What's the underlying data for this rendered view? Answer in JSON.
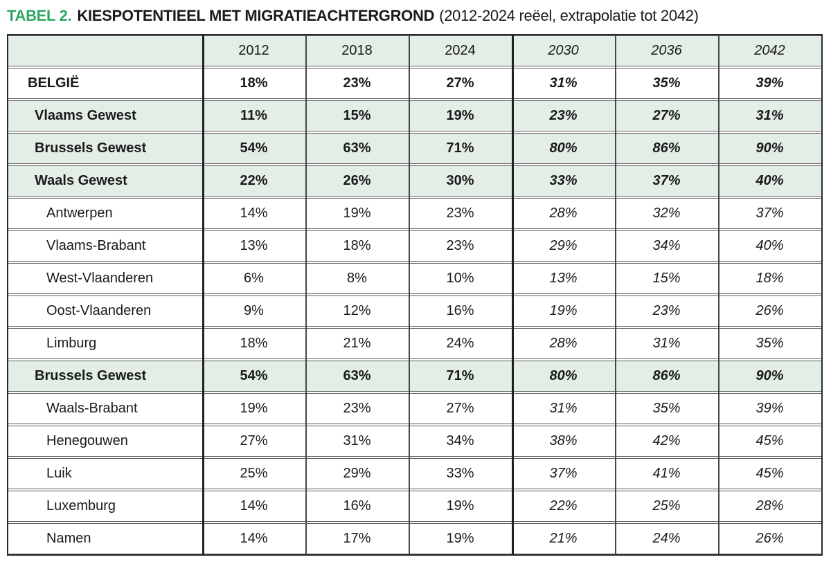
{
  "title": {
    "tag": "TABEL 2.",
    "main": "KIESPOTENTIEEL MET MIGRATIEACHTERGROND",
    "subtitle": "(2012-2024 reëel, extrapolatie tot 2042)"
  },
  "colors": {
    "accent_green": "#2fa665",
    "row_highlight_green": "#e3efe6",
    "border_dark": "#2a2a2a",
    "border_gray": "#5c5c5c",
    "text": "#1a1a1a"
  },
  "chart_data": {
    "type": "table",
    "title": "TABEL 2. KIESPOTENTIEEL MET MIGRATIEACHTERGROND (2012-2024 reëel, extrapolatie tot 2042)",
    "columns": [
      "",
      "2012",
      "2018",
      "2024",
      "2030",
      "2036",
      "2042"
    ],
    "real_years": [
      "2012",
      "2018",
      "2024"
    ],
    "extrapolated_years": [
      "2030",
      "2036",
      "2042"
    ],
    "rows": [
      {
        "label": "BELGIË",
        "style": "country",
        "values": [
          "18%",
          "23%",
          "27%",
          "31%",
          "35%",
          "39%"
        ]
      },
      {
        "label": "Vlaams Gewest",
        "style": "region",
        "values": [
          "11%",
          "15%",
          "19%",
          "23%",
          "27%",
          "31%"
        ]
      },
      {
        "label": "Brussels Gewest",
        "style": "region",
        "values": [
          "54%",
          "63%",
          "71%",
          "80%",
          "86%",
          "90%"
        ]
      },
      {
        "label": "Waals Gewest",
        "style": "region",
        "values": [
          "22%",
          "26%",
          "30%",
          "33%",
          "37%",
          "40%"
        ]
      },
      {
        "label": "Antwerpen",
        "style": "province",
        "values": [
          "14%",
          "19%",
          "23%",
          "28%",
          "32%",
          "37%"
        ]
      },
      {
        "label": "Vlaams-Brabant",
        "style": "province",
        "values": [
          "13%",
          "18%",
          "23%",
          "29%",
          "34%",
          "40%"
        ]
      },
      {
        "label": "West-Vlaanderen",
        "style": "province",
        "values": [
          "6%",
          "8%",
          "10%",
          "13%",
          "15%",
          "18%"
        ]
      },
      {
        "label": "Oost-Vlaanderen",
        "style": "province",
        "values": [
          "9%",
          "12%",
          "16%",
          "19%",
          "23%",
          "26%"
        ]
      },
      {
        "label": "Limburg",
        "style": "province",
        "values": [
          "18%",
          "21%",
          "24%",
          "28%",
          "31%",
          "35%"
        ]
      },
      {
        "label": "Brussels Gewest",
        "style": "region",
        "values": [
          "54%",
          "63%",
          "71%",
          "80%",
          "86%",
          "90%"
        ]
      },
      {
        "label": "Waals-Brabant",
        "style": "province",
        "values": [
          "19%",
          "23%",
          "27%",
          "31%",
          "35%",
          "39%"
        ]
      },
      {
        "label": "Henegouwen",
        "style": "province",
        "values": [
          "27%",
          "31%",
          "34%",
          "38%",
          "42%",
          "45%"
        ]
      },
      {
        "label": "Luik",
        "style": "province",
        "values": [
          "25%",
          "29%",
          "33%",
          "37%",
          "41%",
          "45%"
        ]
      },
      {
        "label": "Luxemburg",
        "style": "province",
        "values": [
          "14%",
          "16%",
          "19%",
          "22%",
          "25%",
          "28%"
        ]
      },
      {
        "label": "Namen",
        "style": "province",
        "values": [
          "14%",
          "17%",
          "19%",
          "21%",
          "24%",
          "26%"
        ]
      }
    ]
  }
}
